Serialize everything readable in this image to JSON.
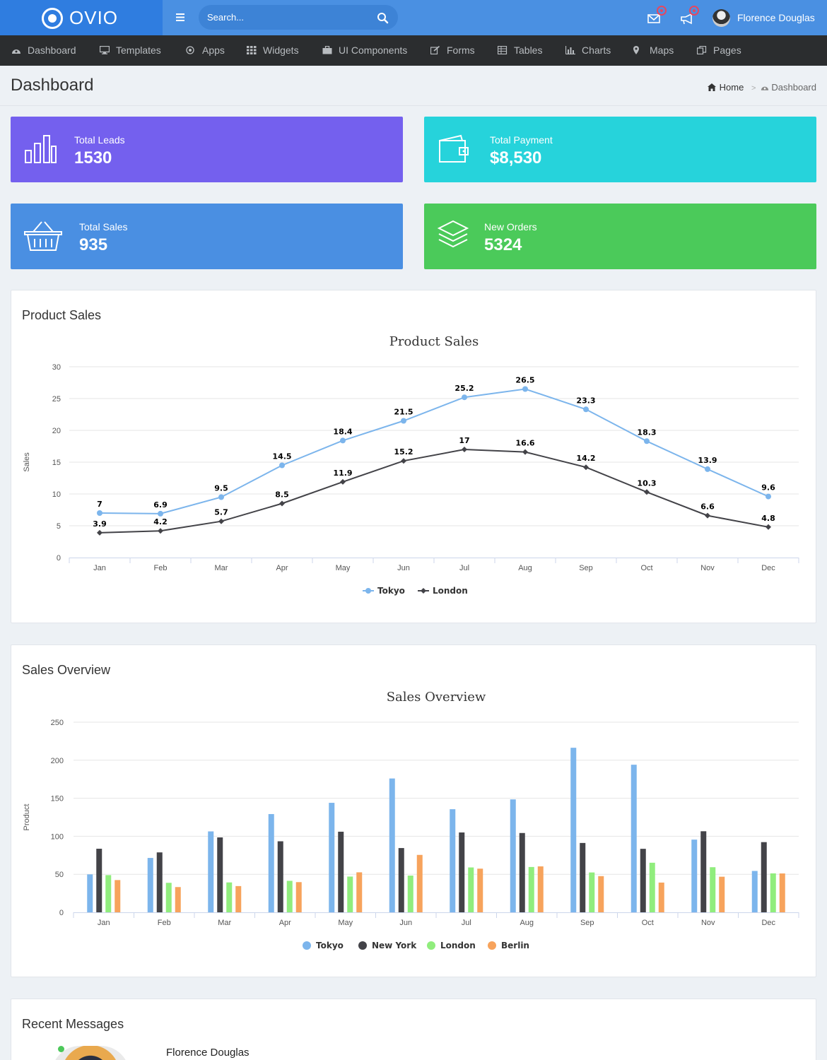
{
  "app": {
    "logo_text": "OVIO"
  },
  "topbar": {
    "search_placeholder": "Search...",
    "user_name": "Florence Douglas"
  },
  "nav": {
    "items": [
      {
        "label": "Dashboard",
        "icon": "dashboard-icon"
      },
      {
        "label": "Templates",
        "icon": "monitor-icon"
      },
      {
        "label": "Apps",
        "icon": "target-icon"
      },
      {
        "label": "Widgets",
        "icon": "grid-icon"
      },
      {
        "label": "UI Components",
        "icon": "briefcase-icon"
      },
      {
        "label": "Forms",
        "icon": "edit-icon"
      },
      {
        "label": "Tables",
        "icon": "table-icon"
      },
      {
        "label": "Charts",
        "icon": "bar-chart-icon"
      },
      {
        "label": "Maps",
        "icon": "map-marker-icon"
      },
      {
        "label": "Pages",
        "icon": "copy-icon"
      }
    ]
  },
  "page": {
    "title": "Dashboard",
    "breadcrumb": {
      "home": "Home",
      "separator": ">",
      "current": "Dashboard"
    }
  },
  "stats": [
    {
      "label": "Total Leads",
      "value": "1530",
      "color": "#7460ee",
      "icon": "bar-chart-icon"
    },
    {
      "label": "Total Payment",
      "value": "$8,530",
      "color": "#26d3db",
      "icon": "wallet-icon"
    },
    {
      "label": "Total Sales",
      "value": "935",
      "color": "#4a8fe2",
      "icon": "basket-icon"
    },
    {
      "label": "New Orders",
      "value": "5324",
      "color": "#4bca5a",
      "icon": "layers-icon"
    }
  ],
  "panels": {
    "product_sales_title": "Product Sales",
    "sales_overview_title": "Sales Overview",
    "recent_messages_title": "Recent Messages"
  },
  "messages": [
    {
      "name": "Florence Douglas",
      "status": "online"
    }
  ],
  "chart_data": [
    {
      "type": "line",
      "title": "Product Sales",
      "xlabel": "",
      "ylabel": "Sales",
      "ylim": [
        0,
        30
      ],
      "yticks": [
        0,
        5,
        10,
        15,
        20,
        25,
        30
      ],
      "grid": true,
      "legend": "bottom-center",
      "data_labels": true,
      "categories": [
        "Jan",
        "Feb",
        "Mar",
        "Apr",
        "May",
        "Jun",
        "Jul",
        "Aug",
        "Sep",
        "Oct",
        "Nov",
        "Dec"
      ],
      "series": [
        {
          "name": "Tokyo",
          "color": "#7cb5ec",
          "marker": "circle",
          "values": [
            7,
            6.9,
            9.5,
            14.5,
            18.4,
            21.5,
            25.2,
            26.5,
            23.3,
            18.3,
            13.9,
            9.6
          ]
        },
        {
          "name": "London",
          "color": "#434348",
          "marker": "diamond",
          "values": [
            3.9,
            4.2,
            5.7,
            8.5,
            11.9,
            15.2,
            17,
            16.6,
            14.2,
            10.3,
            6.6,
            4.8
          ]
        }
      ]
    },
    {
      "type": "bar",
      "title": "Sales Overview",
      "xlabel": "",
      "ylabel": "Product",
      "ylim": [
        0,
        250
      ],
      "yticks": [
        0,
        50,
        100,
        150,
        200,
        250
      ],
      "grid": true,
      "legend": "bottom-center",
      "categories": [
        "Jan",
        "Feb",
        "Mar",
        "Apr",
        "May",
        "Jun",
        "Jul",
        "Aug",
        "Sep",
        "Oct",
        "Nov",
        "Dec"
      ],
      "series": [
        {
          "name": "Tokyo",
          "color": "#7cb5ec",
          "values": [
            49.9,
            71.5,
            106.4,
            129.2,
            144.0,
            176.0,
            135.6,
            148.5,
            216.4,
            194.1,
            95.6,
            54.4
          ]
        },
        {
          "name": "New York",
          "color": "#434348",
          "values": [
            83.6,
            78.8,
            98.5,
            93.4,
            106.0,
            84.5,
            105.0,
            104.3,
            91.2,
            83.5,
            106.6,
            92.3
          ]
        },
        {
          "name": "London",
          "color": "#90ed7d",
          "values": [
            48.9,
            38.8,
            39.3,
            41.4,
            47.0,
            48.3,
            59.0,
            59.6,
            52.4,
            65.2,
            59.3,
            51.2
          ]
        },
        {
          "name": "Berlin",
          "color": "#f7a35c",
          "values": [
            42.4,
            33.2,
            34.5,
            39.7,
            52.6,
            75.5,
            57.4,
            60.4,
            47.6,
            39.1,
            46.8,
            51.1
          ]
        }
      ]
    }
  ]
}
